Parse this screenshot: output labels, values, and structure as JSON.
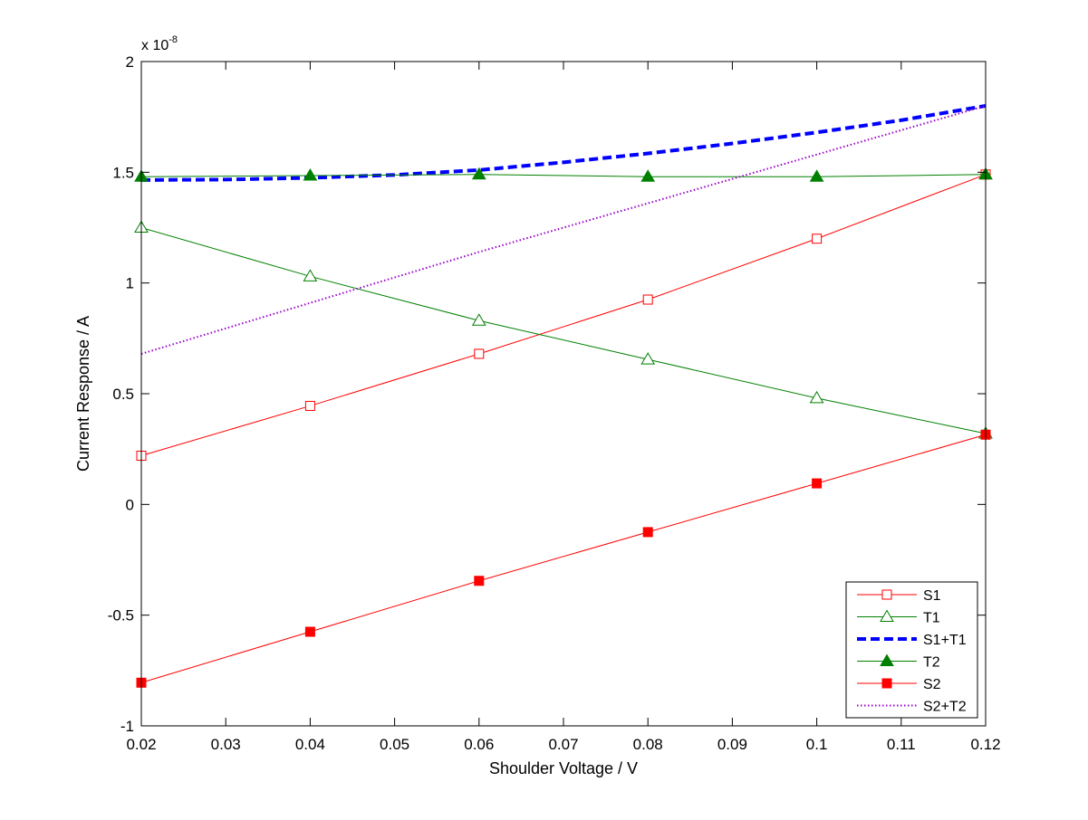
{
  "chart_data": {
    "type": "line",
    "title": "",
    "xlabel": "Shoulder Voltage / V",
    "ylabel": "Current Response / A",
    "exponent_base": "x 10",
    "exponent_power": "-8",
    "xlim": [
      0.02,
      0.12
    ],
    "ylim": [
      -1,
      2
    ],
    "y_scale": 1e-08,
    "grid": false,
    "legend_position": "bottom-right",
    "x_ticks": [
      0.02,
      0.03,
      0.04,
      0.05,
      0.06,
      0.07,
      0.08,
      0.09,
      0.1,
      0.11,
      0.12
    ],
    "x_tick_labels": [
      "0.02",
      "0.03",
      "0.04",
      "0.05",
      "0.06",
      "0.07",
      "0.08",
      "0.09",
      "0.1",
      "0.11",
      "0.12"
    ],
    "y_ticks": [
      -1,
      -0.5,
      0,
      0.5,
      1,
      1.5,
      2
    ],
    "y_tick_labels": [
      "-1",
      "-0.5",
      "0",
      "0.5",
      "1",
      "1.5",
      "2"
    ],
    "series": [
      {
        "name": "S1",
        "color": "#ff0000",
        "line": "solid",
        "marker": "square-open",
        "x": [
          0.02,
          0.04,
          0.06,
          0.08,
          0.1,
          0.12
        ],
        "y": [
          0.22,
          0.445,
          0.68,
          0.925,
          1.2,
          1.49
        ]
      },
      {
        "name": "T1",
        "color": "#008000",
        "line": "solid",
        "marker": "triangle-open",
        "x": [
          0.02,
          0.04,
          0.06,
          0.08,
          0.1,
          0.12
        ],
        "y": [
          1.25,
          1.03,
          0.83,
          0.655,
          0.48,
          0.32
        ]
      },
      {
        "name": "S1+T1",
        "color": "#0000ff",
        "line": "dashed",
        "marker": "none",
        "x": [
          0.02,
          0.03,
          0.04,
          0.05,
          0.06,
          0.07,
          0.08,
          0.09,
          0.1,
          0.11,
          0.12
        ],
        "y": [
          1.465,
          1.467,
          1.475,
          1.488,
          1.51,
          1.545,
          1.585,
          1.63,
          1.68,
          1.735,
          1.8
        ]
      },
      {
        "name": "T2",
        "color": "#008000",
        "line": "solid",
        "marker": "triangle-filled",
        "x": [
          0.02,
          0.04,
          0.06,
          0.08,
          0.1,
          0.12
        ],
        "y": [
          1.48,
          1.485,
          1.49,
          1.48,
          1.48,
          1.49
        ]
      },
      {
        "name": "S2",
        "color": "#ff0000",
        "line": "solid",
        "marker": "square-filled",
        "x": [
          0.02,
          0.04,
          0.06,
          0.08,
          0.1,
          0.12
        ],
        "y": [
          -0.805,
          -0.575,
          -0.345,
          -0.125,
          0.095,
          0.315
        ]
      },
      {
        "name": "S2+T2",
        "color": "#9900cc",
        "line": "dotted",
        "marker": "none",
        "x": [
          0.02,
          0.03,
          0.04,
          0.05,
          0.06,
          0.07,
          0.08,
          0.09,
          0.1,
          0.11,
          0.12
        ],
        "y": [
          0.68,
          0.795,
          0.91,
          1.025,
          1.14,
          1.25,
          1.36,
          1.47,
          1.58,
          1.69,
          1.8
        ]
      }
    ]
  }
}
